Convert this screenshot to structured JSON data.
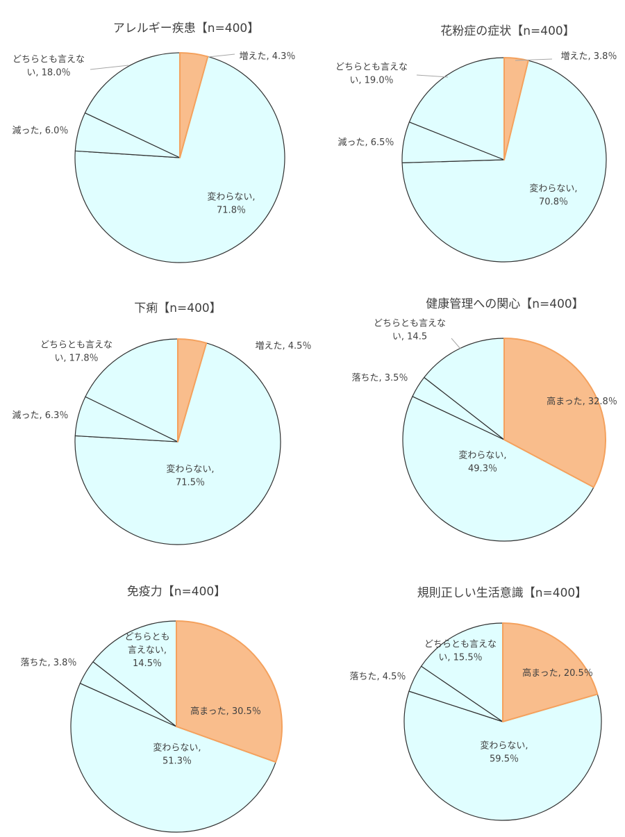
{
  "colors": {
    "highlight_fill": "#f9bd8c",
    "highlight_stroke": "#f4a15d",
    "neutral_fill": "#e0feff",
    "neutral_stroke": "#303030"
  },
  "chart_data": [
    {
      "type": "pie",
      "title": "アレルギー疾患【n=400】",
      "slices": [
        {
          "name": "増えた",
          "value": 4.3,
          "label": [
            "増えた, 4.3％"
          ],
          "highlight": true
        },
        {
          "name": "変わらない",
          "value": 71.8,
          "label": [
            "変わらない,",
            "71.8％"
          ],
          "highlight": false
        },
        {
          "name": "減った",
          "value": 6.0,
          "label": [
            "減った, 6.0％"
          ],
          "highlight": false
        },
        {
          "name": "どちらとも言えない",
          "value": 18.0,
          "label": [
            "どちらとも言えな",
            "い, 18.0％"
          ],
          "highlight": false
        }
      ]
    },
    {
      "type": "pie",
      "title": "花粉症の症状【n=400】",
      "slices": [
        {
          "name": "増えた",
          "value": 3.8,
          "label": [
            "増えた, 3.8％"
          ],
          "highlight": true
        },
        {
          "name": "変わらない",
          "value": 70.8,
          "label": [
            "変わらない,",
            "70.8％"
          ],
          "highlight": false
        },
        {
          "name": "減った",
          "value": 6.5,
          "label": [
            "減った, 6.5％"
          ],
          "highlight": false
        },
        {
          "name": "どちらとも言えない",
          "value": 19.0,
          "label": [
            "どちらとも言えな",
            "い, 19.0％"
          ],
          "highlight": false
        }
      ]
    },
    {
      "type": "pie",
      "title": "下痢【n=400】",
      "slices": [
        {
          "name": "増えた",
          "value": 4.5,
          "label": [
            "増えた, 4.5％"
          ],
          "highlight": true
        },
        {
          "name": "変わらない",
          "value": 71.5,
          "label": [
            "変わらない,",
            "71.5％"
          ],
          "highlight": false
        },
        {
          "name": "減った",
          "value": 6.3,
          "label": [
            "減った, 6.3％"
          ],
          "highlight": false
        },
        {
          "name": "どちらとも言えない",
          "value": 17.8,
          "label": [
            "どちらとも言えな",
            "い, 17.8％"
          ],
          "highlight": false
        }
      ]
    },
    {
      "type": "pie",
      "title": "健康管理への関心【n=400】",
      "slices": [
        {
          "name": "高まった",
          "value": 32.8,
          "label": [
            "高まった, 32.8％"
          ],
          "highlight": true
        },
        {
          "name": "変わらない",
          "value": 49.3,
          "label": [
            "変わらない,",
            "49.3％"
          ],
          "highlight": false
        },
        {
          "name": "落ちた",
          "value": 3.5,
          "label": [
            "落ちた, 3.5％"
          ],
          "highlight": false
        },
        {
          "name": "どちらとも言えない",
          "value": 14.5,
          "label": [
            "どちらとも言えな",
            "い, 14.5"
          ],
          "highlight": false
        }
      ]
    },
    {
      "type": "pie",
      "title": "免疫力【n=400】",
      "slices": [
        {
          "name": "高まった",
          "value": 30.5,
          "label": [
            "高まった, 30.5％"
          ],
          "highlight": true
        },
        {
          "name": "変わらない",
          "value": 51.3,
          "label": [
            "変わらない,",
            "51.3％"
          ],
          "highlight": false
        },
        {
          "name": "落ちた",
          "value": 3.8,
          "label": [
            "落ちた, 3.8％"
          ],
          "highlight": false
        },
        {
          "name": "どちらとも言えない",
          "value": 14.5,
          "label": [
            "どちらとも",
            "言えない,",
            "14.5％"
          ],
          "highlight": false
        }
      ]
    },
    {
      "type": "pie",
      "title": "規則正しい生活意識【n=400】",
      "slices": [
        {
          "name": "高まった",
          "value": 20.5,
          "label": [
            "高まった, 20.5％"
          ],
          "highlight": true
        },
        {
          "name": "変わらない",
          "value": 59.5,
          "label": [
            "変わらない,",
            "59.5％"
          ],
          "highlight": false
        },
        {
          "name": "落ちた",
          "value": 4.5,
          "label": [
            "落ちた, 4.5％"
          ],
          "highlight": false
        },
        {
          "name": "どちらとも言えない",
          "value": 15.5,
          "label": [
            "どちらとも言えな",
            "い, 15.5％"
          ],
          "highlight": false
        }
      ]
    }
  ]
}
